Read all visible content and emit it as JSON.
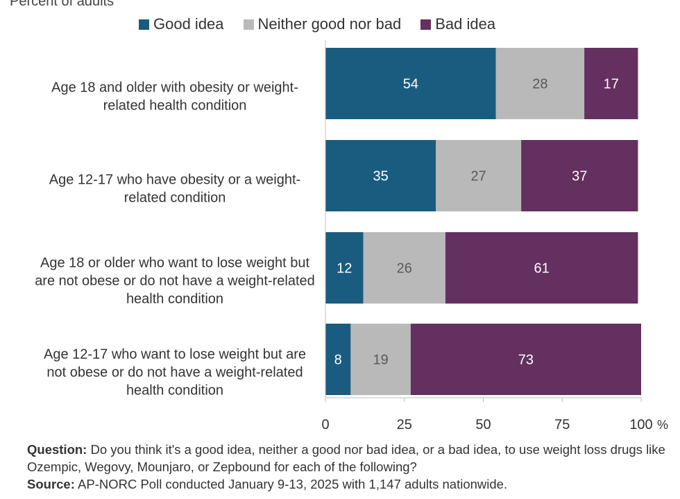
{
  "chart_data": {
    "type": "bar",
    "orientation": "horizontal",
    "stacked": true,
    "subtitle": "Percent of adults",
    "categories": [
      [
        "Age 18 and older with obesity or weight-",
        "related health condition"
      ],
      [
        "Age 12-17 who have obesity or a weight-",
        "related condition"
      ],
      [
        "Age 18 or older who want to lose weight but",
        "are not obese or do not have a weight-related",
        "health condition"
      ],
      [
        "Age 12-17 who want to lose weight but are",
        "not obese or do not have a weight-related",
        "health condition"
      ]
    ],
    "series": [
      {
        "name": "Good idea",
        "color": "#1a5c7f",
        "label_color": "#ffffff",
        "values": [
          54,
          35,
          12,
          8
        ]
      },
      {
        "name": "Neither good nor bad",
        "color": "#b9b9b9",
        "label_color": "#595959",
        "values": [
          28,
          27,
          26,
          19
        ]
      },
      {
        "name": "Bad idea",
        "color": "#64305f",
        "label_color": "#ffffff",
        "values": [
          17,
          37,
          61,
          73
        ]
      }
    ],
    "xlim": [
      0,
      100
    ],
    "xticks": [
      0,
      25,
      50,
      75,
      100
    ],
    "xtick_labels": [
      "0",
      "25",
      "50",
      "75",
      "100"
    ],
    "x_unit": "%",
    "legend_position": "top",
    "grid": false
  },
  "footnotes": {
    "question_label": "Question:",
    "question_text": " Do you think it's a good idea, neither a good nor bad idea, or a bad idea, to use weight loss drugs like Ozempic, Wegovy, Mounjaro, or Zepbound for each of the following?",
    "source_label": "Source:",
    "source_text": "  AP-NORC Poll conducted January 9-13, 2025 with 1,147 adults nationwide."
  }
}
